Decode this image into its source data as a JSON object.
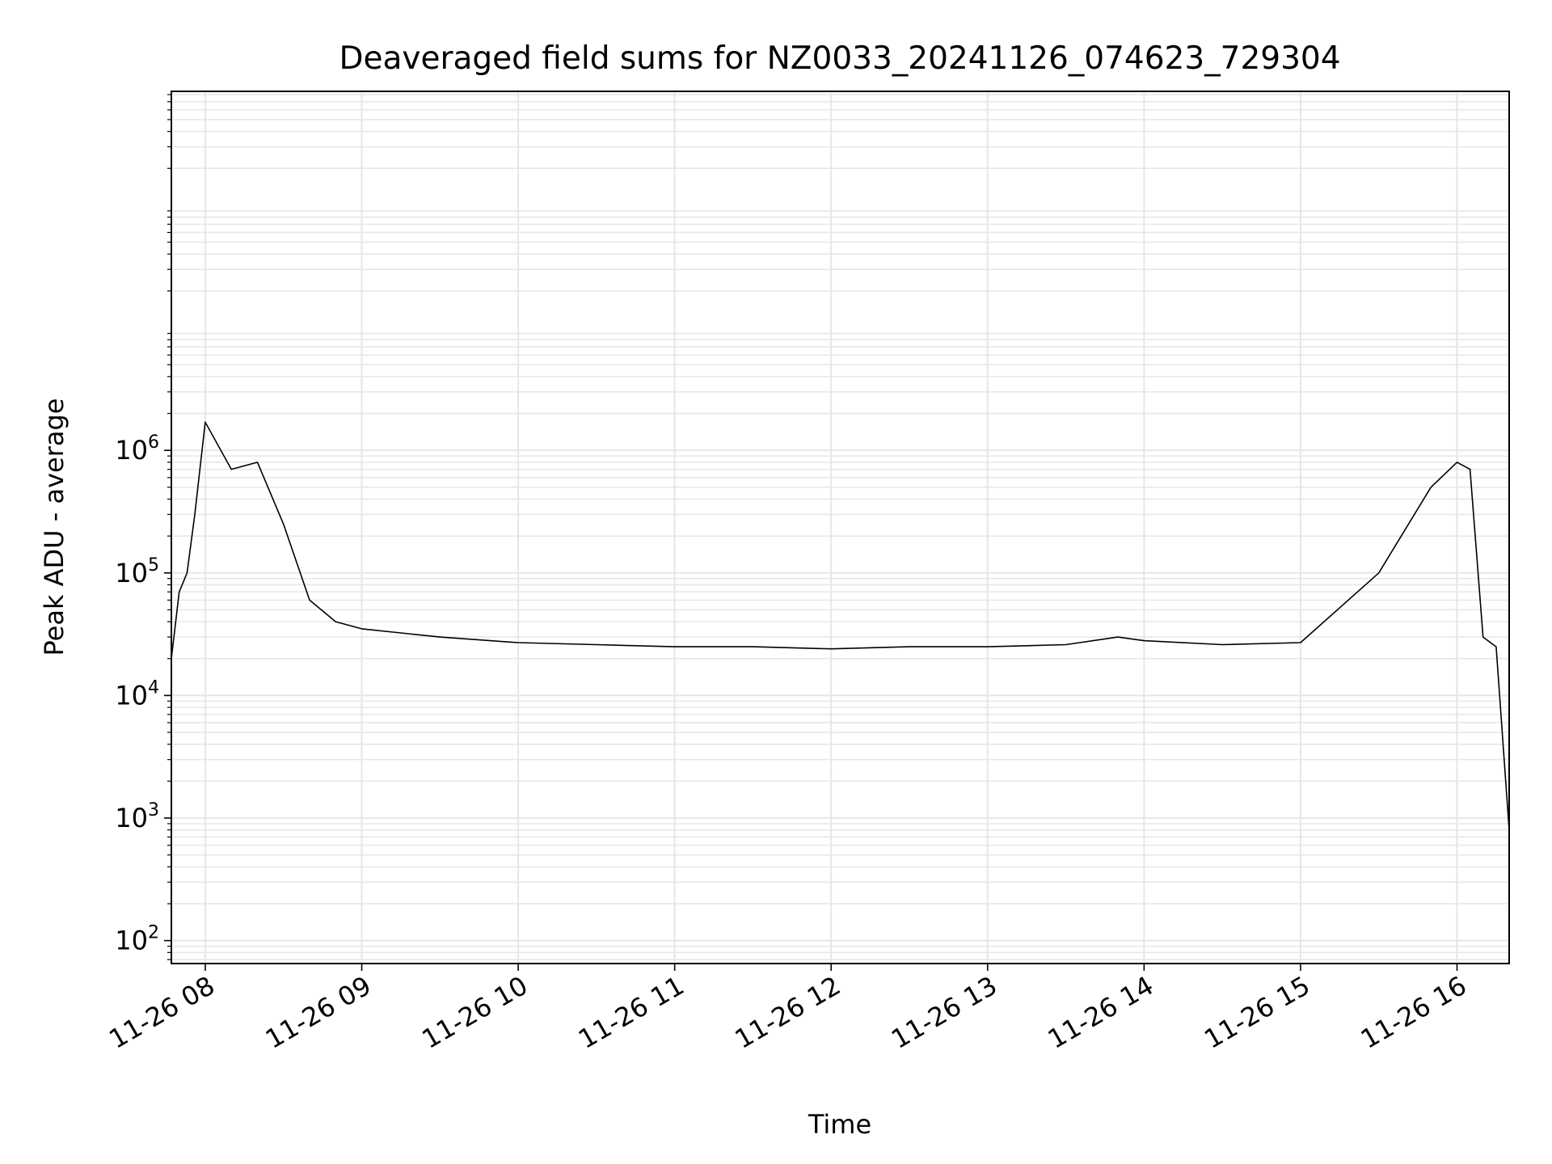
{
  "chart_data": {
    "type": "line",
    "title": "Deaveraged field sums for NZ0033_20241126_074623_729304",
    "xlabel": "Time",
    "ylabel": "Peak ADU - average",
    "x_ticks": [
      "11-26 08",
      "11-26 09",
      "11-26 10",
      "11-26 11",
      "11-26 12",
      "11-26 13",
      "11-26 14",
      "11-26 15",
      "11-26 16"
    ],
    "xlim": [
      "2024-11-26 07:47",
      "2024-11-26 16:20"
    ],
    "y_scale": "log",
    "ylim": [
      65,
      850000000
    ],
    "y_ticks": [
      {
        "value": 100,
        "base": "10",
        "exp": "2"
      },
      {
        "value": 1000,
        "base": "10",
        "exp": "3"
      },
      {
        "value": 10000,
        "base": "10",
        "exp": "4"
      },
      {
        "value": 100000,
        "base": "10",
        "exp": "5"
      },
      {
        "value": 1000000,
        "base": "10",
        "exp": "6"
      }
    ],
    "grid": true,
    "line_color": "#000000",
    "grid_color": "#e6e6e6",
    "series": [
      {
        "values": [
          {
            "x": "2024-11-26 07:47",
            "y": 20000
          },
          {
            "x": "2024-11-26 07:50",
            "y": 70000
          },
          {
            "x": "2024-11-26 07:53",
            "y": 100000
          },
          {
            "x": "2024-11-26 07:56",
            "y": 300000
          },
          {
            "x": "2024-11-26 08:00",
            "y": 1700000
          },
          {
            "x": "2024-11-26 08:10",
            "y": 700000
          },
          {
            "x": "2024-11-26 08:20",
            "y": 800000
          },
          {
            "x": "2024-11-26 08:30",
            "y": 250000
          },
          {
            "x": "2024-11-26 08:40",
            "y": 60000
          },
          {
            "x": "2024-11-26 08:50",
            "y": 40000
          },
          {
            "x": "2024-11-26 09:00",
            "y": 35000
          },
          {
            "x": "2024-11-26 09:30",
            "y": 30000
          },
          {
            "x": "2024-11-26 10:00",
            "y": 27000
          },
          {
            "x": "2024-11-26 10:30",
            "y": 26000
          },
          {
            "x": "2024-11-26 11:00",
            "y": 25000
          },
          {
            "x": "2024-11-26 11:30",
            "y": 25000
          },
          {
            "x": "2024-11-26 12:00",
            "y": 24000
          },
          {
            "x": "2024-11-26 12:30",
            "y": 25000
          },
          {
            "x": "2024-11-26 13:00",
            "y": 25000
          },
          {
            "x": "2024-11-26 13:30",
            "y": 26000
          },
          {
            "x": "2024-11-26 13:50",
            "y": 30000
          },
          {
            "x": "2024-11-26 14:00",
            "y": 28000
          },
          {
            "x": "2024-11-26 14:30",
            "y": 26000
          },
          {
            "x": "2024-11-26 15:00",
            "y": 27000
          },
          {
            "x": "2024-11-26 15:30",
            "y": 100000
          },
          {
            "x": "2024-11-26 15:50",
            "y": 500000
          },
          {
            "x": "2024-11-26 16:00",
            "y": 800000
          },
          {
            "x": "2024-11-26 16:05",
            "y": 700000
          },
          {
            "x": "2024-11-26 16:10",
            "y": 30000
          },
          {
            "x": "2024-11-26 16:15",
            "y": 25000
          },
          {
            "x": "2024-11-26 16:20",
            "y": 800
          }
        ]
      }
    ]
  }
}
